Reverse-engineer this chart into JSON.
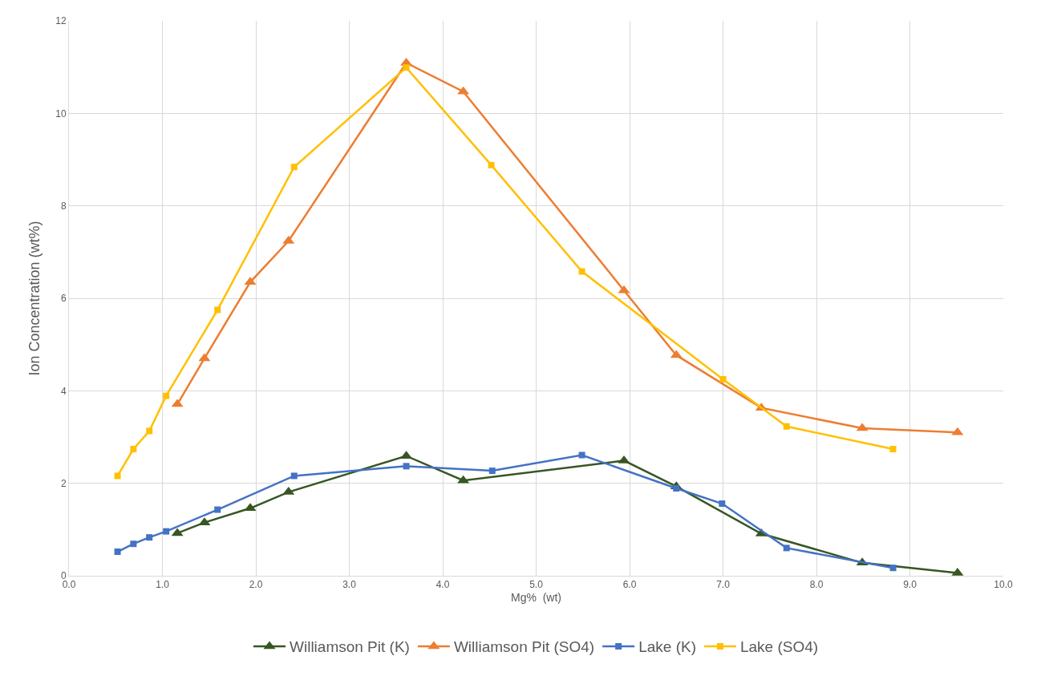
{
  "chart_data": {
    "type": "line",
    "xlabel": "Mg%  (wt)",
    "ylabel": "Ion Concentration (wt%)",
    "xlim": [
      0,
      10
    ],
    "ylim": [
      0,
      12
    ],
    "xticks": [
      {
        "value": 0,
        "label": "0.0"
      },
      {
        "value": 1,
        "label": "1.0"
      },
      {
        "value": 2,
        "label": "2.0"
      },
      {
        "value": 3,
        "label": "3.0"
      },
      {
        "value": 4,
        "label": "4.0"
      },
      {
        "value": 5,
        "label": "5.0"
      },
      {
        "value": 6,
        "label": "6.0"
      },
      {
        "value": 7,
        "label": "7.0"
      },
      {
        "value": 8,
        "label": "8.0"
      },
      {
        "value": 9,
        "label": "9.0"
      },
      {
        "value": 10,
        "label": "10.0"
      }
    ],
    "yticks": [
      0,
      2,
      4,
      6,
      8,
      10,
      12
    ],
    "grid": true,
    "legend": "bottom",
    "line_style": "solid",
    "series": [
      {
        "name": "Williamson Pit (K)",
        "color": "#375623",
        "marker": "triangle",
        "x": [
          1.16,
          1.45,
          1.94,
          2.35,
          3.61,
          4.22,
          5.94,
          6.5,
          7.41,
          8.49,
          9.51
        ],
        "values": [
          0.92,
          1.15,
          1.46,
          1.81,
          2.59,
          2.06,
          2.49,
          1.93,
          0.91,
          0.28,
          0.06
        ]
      },
      {
        "name": "Williamson Pit (SO4)",
        "color": "#ed7d31",
        "marker": "triangle",
        "x": [
          1.16,
          1.45,
          1.94,
          2.35,
          3.61,
          4.22,
          5.94,
          6.5,
          7.41,
          8.49,
          9.51
        ],
        "values": [
          3.71,
          4.7,
          6.35,
          7.24,
          11.09,
          10.47,
          6.17,
          4.77,
          3.63,
          3.19,
          3.1
        ]
      },
      {
        "name": "Lake (K)",
        "color": "#4472c4",
        "marker": "square",
        "x": [
          0.52,
          0.69,
          0.86,
          1.04,
          1.59,
          2.41,
          3.61,
          4.53,
          5.49,
          6.5,
          6.99,
          7.68,
          8.82
        ],
        "values": [
          0.52,
          0.69,
          0.83,
          0.96,
          1.43,
          2.16,
          2.37,
          2.27,
          2.61,
          1.89,
          1.56,
          0.6,
          0.17
        ]
      },
      {
        "name": "Lake (SO4)",
        "color": "#ffc000",
        "marker": "square",
        "x": [
          0.52,
          0.69,
          0.86,
          1.04,
          1.59,
          2.41,
          3.61,
          4.52,
          5.49,
          7.0,
          7.68,
          8.82
        ],
        "values": [
          2.16,
          2.74,
          3.13,
          3.89,
          5.75,
          8.84,
          10.99,
          8.88,
          6.58,
          4.25,
          3.23,
          2.74
        ]
      }
    ]
  }
}
